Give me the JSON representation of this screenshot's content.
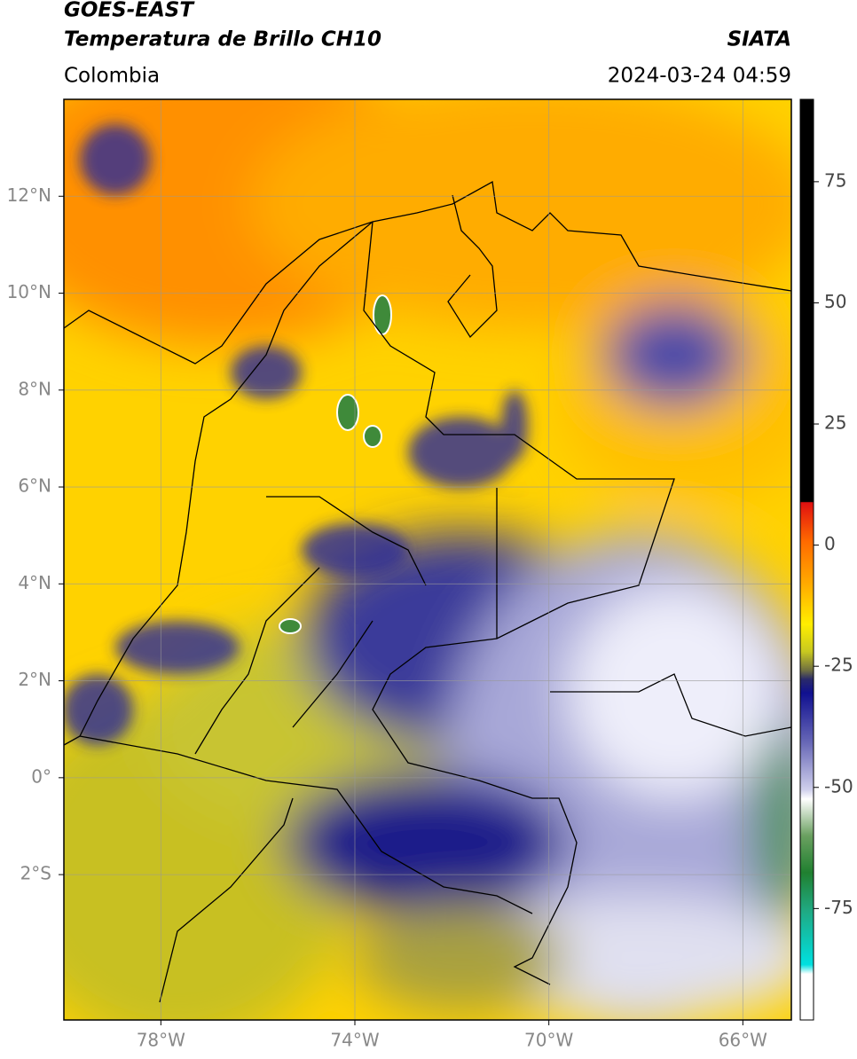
{
  "header": {
    "title": "GOES-EAST",
    "subtitle": "Temperatura de Brillo CH10",
    "source": "SIATA",
    "region": "Colombia",
    "timestamp": "2024-03-24 04:59"
  },
  "map": {
    "lonlim": [
      -80,
      -65
    ],
    "latlim": [
      -5,
      14
    ],
    "lon_ticks": [
      {
        "value": -78,
        "label": "78°W"
      },
      {
        "value": -74,
        "label": "74°W"
      },
      {
        "value": -70,
        "label": "70°W"
      },
      {
        "value": -66,
        "label": "66°W"
      }
    ],
    "lat_ticks": [
      {
        "value": 12,
        "label": "12°N"
      },
      {
        "value": 10,
        "label": "10°N"
      },
      {
        "value": 8,
        "label": "8°N"
      },
      {
        "value": 6,
        "label": "6°N"
      },
      {
        "value": 4,
        "label": "4°N"
      },
      {
        "value": 2,
        "label": "2°N"
      },
      {
        "value": 0,
        "label": "0°"
      },
      {
        "value": -2,
        "label": "2°S"
      }
    ],
    "grid": true
  },
  "colorbar": {
    "lim": [
      -98,
      92
    ],
    "ticks": [
      75,
      50,
      25,
      0,
      -25,
      -50,
      -75
    ]
  }
}
